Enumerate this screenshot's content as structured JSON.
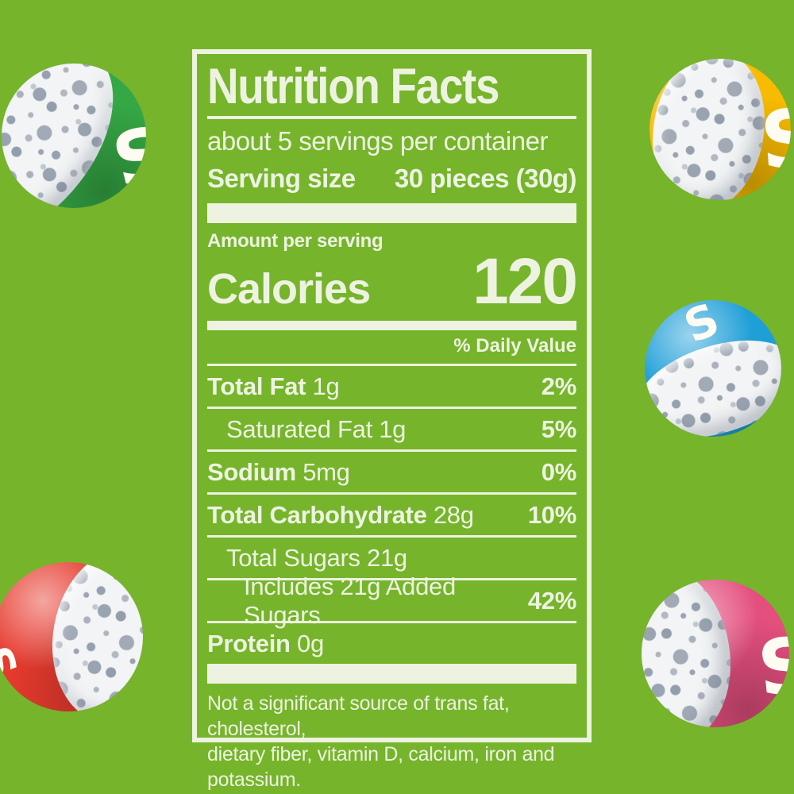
{
  "colors": {
    "background_green": "#76b42c",
    "label_ink_offwhite": "#edf3e0"
  },
  "label": {
    "title": "Nutrition Facts",
    "servings_per_container": "about 5 servings per container",
    "serving_size_label": "Serving size",
    "serving_size_value": "30 pieces (30g)",
    "amount_per_serving": "Amount per serving",
    "calories_label": "Calories",
    "calories_value": "120",
    "daily_value_header": "% Daily Value",
    "rows": [
      {
        "name": "Total Fat",
        "amount": "1g",
        "dv": "2%"
      },
      {
        "name": "Saturated Fat 1g",
        "amount": "",
        "dv": "5%"
      },
      {
        "name": "Sodium",
        "amount": "5mg",
        "dv": "0%"
      },
      {
        "name": "Total Carbohydrate",
        "amount": "28g",
        "dv": "10%"
      },
      {
        "name": "Total Sugars 21g",
        "amount": "",
        "dv": ""
      },
      {
        "name": "Includes 21g Added Sugars",
        "amount": "",
        "dv": "42%"
      },
      {
        "name": "Protein",
        "amount": "0g",
        "dv": ""
      }
    ],
    "footnote": {
      "line1": "Not a significant source of trans fat, cholesterol,",
      "line2": "dietary fiber, vitamin D, calcium, iron and potassium."
    }
  },
  "candies": [
    {
      "flavor": "green",
      "position": "top-left",
      "color": "#35a845",
      "letter": "S"
    },
    {
      "flavor": "yellow",
      "position": "top-right",
      "color": "#f8bb00",
      "letter": "S"
    },
    {
      "flavor": "blue",
      "position": "middle-right",
      "color": "#1f9fd8",
      "letter": "S"
    },
    {
      "flavor": "red",
      "position": "bottom-left",
      "color": "#e63a2e",
      "letter": "S"
    },
    {
      "flavor": "pink",
      "position": "bottom-right",
      "color": "#e44f7e",
      "letter": "S"
    }
  ]
}
